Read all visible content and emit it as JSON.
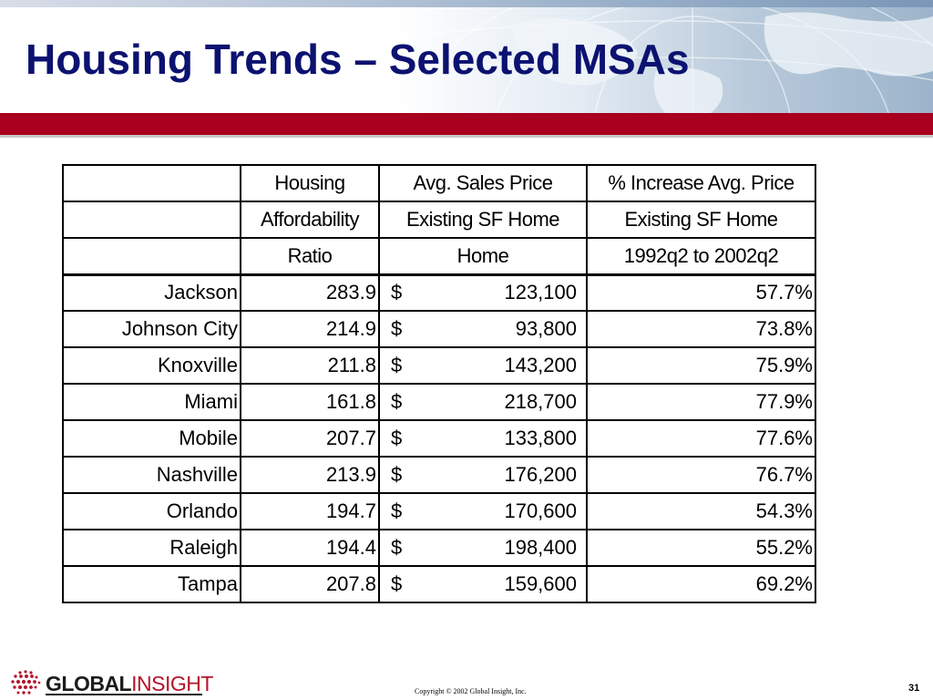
{
  "title": "Housing Trends – Selected MSAs",
  "table": {
    "header_rows": [
      [
        "",
        "Housing",
        "Avg. Sales Price",
        "% Increase Avg. Price"
      ],
      [
        "",
        "Affordability",
        "Existing SF Home",
        "Existing SF Home"
      ],
      [
        "",
        "Ratio",
        "Home",
        "1992q2 to 2002q2"
      ]
    ],
    "rows": [
      {
        "msa": "Jackson",
        "ratio": "283.9",
        "currency": "$",
        "price": "123,100",
        "increase": "57.7%"
      },
      {
        "msa": "Johnson City",
        "ratio": "214.9",
        "currency": "$",
        "price": "93,800",
        "increase": "73.8%"
      },
      {
        "msa": "Knoxville",
        "ratio": "211.8",
        "currency": "$",
        "price": "143,200",
        "increase": "75.9%"
      },
      {
        "msa": "Miami",
        "ratio": "161.8",
        "currency": "$",
        "price": "218,700",
        "increase": "77.9%"
      },
      {
        "msa": "Mobile",
        "ratio": "207.7",
        "currency": "$",
        "price": "133,800",
        "increase": "77.6%"
      },
      {
        "msa": "Nashville",
        "ratio": "213.9",
        "currency": "$",
        "price": "176,200",
        "increase": "76.7%"
      },
      {
        "msa": "Orlando",
        "ratio": "194.7",
        "currency": "$",
        "price": "170,600",
        "increase": "54.3%"
      },
      {
        "msa": "Raleigh",
        "ratio": "194.4",
        "currency": "$",
        "price": "198,400",
        "increase": "55.2%"
      },
      {
        "msa": "Tampa",
        "ratio": "207.8",
        "currency": "$",
        "price": "159,600",
        "increase": "69.2%"
      }
    ]
  },
  "footer": {
    "logo_part1": "GLOBAL",
    "logo_part2": "INSIGHT",
    "copyright": "Copyright © 2002 Global Insight, Inc.",
    "page_number": "31"
  },
  "colors": {
    "title": "#0c1270",
    "red_band": "#a8001e",
    "logo_accent": "#b3162c"
  }
}
